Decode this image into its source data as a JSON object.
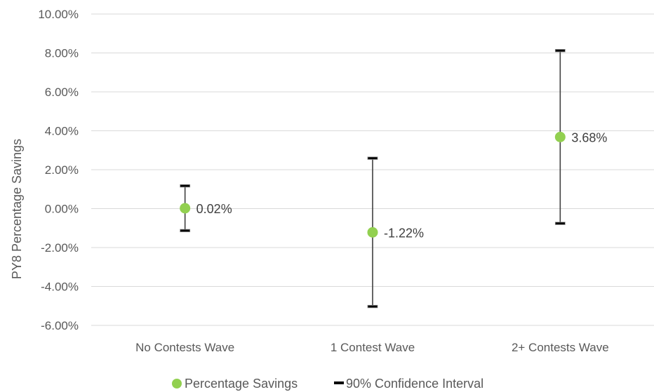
{
  "chart_data": {
    "type": "scatter",
    "ylabel": "PY8 Percentage Savings",
    "ylim": [
      -6,
      10
    ],
    "ytick_step": 2,
    "ytick_labels": [
      "10.00%",
      "8.00%",
      "6.00%",
      "4.00%",
      "2.00%",
      "0.00%",
      "-2.00%",
      "-4.00%",
      "-6.00%"
    ],
    "categories": [
      "No Contests Wave",
      "1 Contest Wave",
      "2+ Contests Wave"
    ],
    "series": [
      {
        "name": "Percentage Savings",
        "values": [
          0.02,
          -1.22,
          3.68
        ],
        "data_labels": [
          "0.02%",
          "-1.22%",
          "3.68%"
        ],
        "color": "#92d050"
      },
      {
        "name": "90% Confidence Interval",
        "lower": [
          -1.13,
          -5.03,
          -0.76
        ],
        "upper": [
          1.17,
          2.59,
          8.12
        ],
        "color": "#000000"
      }
    ],
    "grid": true,
    "legend": "bottom"
  }
}
